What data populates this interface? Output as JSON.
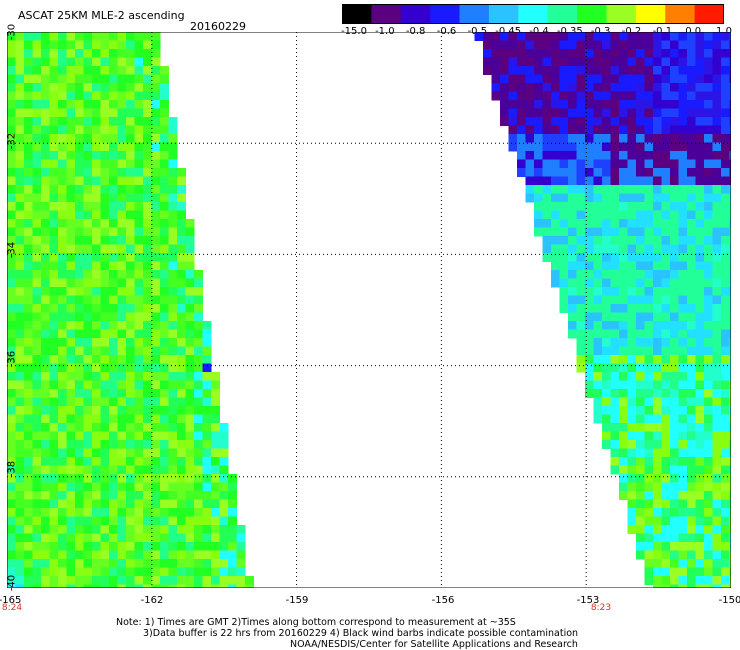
{
  "header": {
    "title": "ASCAT 25KM MLE-2 ascending",
    "date": "20160229"
  },
  "colorbar": {
    "labels": [
      "-15.0",
      "-1.0",
      "-0.8",
      "-0.6",
      "-0.5",
      "-0.45",
      "-0.4",
      "-0.35",
      "-0.3",
      "-0.2",
      "-0.1",
      "0.0",
      "1.0"
    ],
    "colors": [
      "#000000",
      "#5a0080",
      "#3300d0",
      "#1a1aff",
      "#1f7fff",
      "#2ac3ff",
      "#22ffff",
      "#22ff99",
      "#22ff22",
      "#99ff22",
      "#ffff00",
      "#ff7f00",
      "#ff1a00"
    ]
  },
  "axes": {
    "lat_labels": [
      "-30",
      "-32",
      "-34",
      "-36",
      "-38",
      "-40"
    ],
    "lon_labels": [
      "-165",
      "-162",
      "-159",
      "-156",
      "-153",
      "-150"
    ],
    "lat_range": [
      -40,
      -30
    ],
    "lon_range": [
      -165,
      -150
    ],
    "grid_lines": "dotted"
  },
  "pass_times": [
    "8:24",
    "8:23"
  ],
  "notes": [
    "Note: 1) Times are GMT 2)Times along bottom correspond to measurement at ~35S",
    "3)Data buffer is 22 hrs from 20160229 4) Black wind barbs indicate possible contamination",
    "NOAA/NESDIS/Center for Satellite Applications and Research"
  ]
}
